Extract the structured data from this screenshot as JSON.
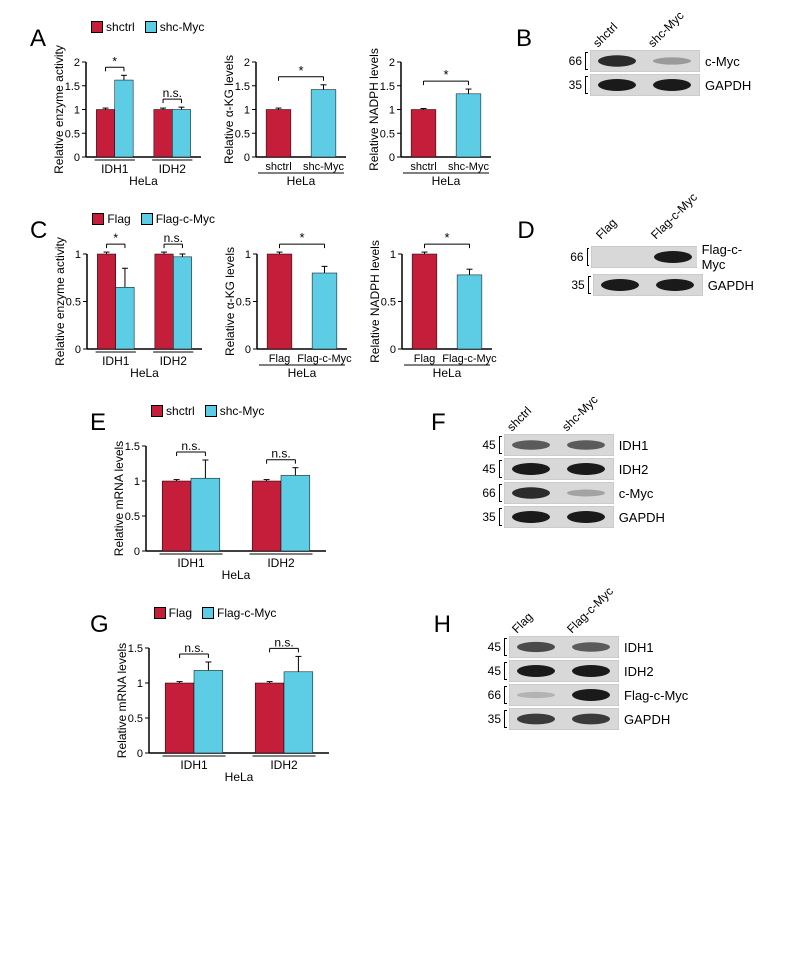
{
  "colors": {
    "shctrl": "#c41e3a",
    "shc_myc": "#5dcde5",
    "axis": "#000000",
    "bg": "#ffffff"
  },
  "panelA": {
    "label": "A",
    "legend": [
      {
        "label": "shctrl",
        "color": "#c41e3a"
      },
      {
        "label": "shc-Myc",
        "color": "#5dcde5"
      }
    ],
    "charts": [
      {
        "ylabel": "Relative enzyme activity",
        "ymax": 2,
        "yticks": [
          0,
          0.5,
          1,
          1.5,
          2
        ],
        "groups": [
          {
            "name": "IDH1",
            "bars": [
              {
                "v": 1.0,
                "err": 0.03,
                "c": "#c41e3a"
              },
              {
                "v": 1.62,
                "err": 0.1,
                "c": "#5dcde5"
              }
            ],
            "sig": "*"
          },
          {
            "name": "IDH2",
            "bars": [
              {
                "v": 1.0,
                "err": 0.03,
                "c": "#c41e3a"
              },
              {
                "v": 1.0,
                "err": 0.05,
                "c": "#5dcde5"
              }
            ],
            "sig": "n.s."
          }
        ],
        "xlabel": "HeLa"
      },
      {
        "ylabel": "Relative α-KG levels",
        "ymax": 2,
        "yticks": [
          0,
          0.5,
          1,
          1.5,
          2
        ],
        "groups": [
          {
            "name": "shctrl",
            "bars": [
              {
                "v": 1.0,
                "err": 0.03,
                "c": "#c41e3a"
              }
            ]
          },
          {
            "name": "shc-Myc",
            "bars": [
              {
                "v": 1.42,
                "err": 0.1,
                "c": "#5dcde5"
              }
            ]
          }
        ],
        "sig_span": "*",
        "xlabel": "HeLa"
      },
      {
        "ylabel": "Relative NADPH levels",
        "ymax": 2,
        "yticks": [
          0,
          0.5,
          1,
          1.5,
          2
        ],
        "groups": [
          {
            "name": "shctrl",
            "bars": [
              {
                "v": 1.0,
                "err": 0.02,
                "c": "#c41e3a"
              }
            ]
          },
          {
            "name": "shc-Myc",
            "bars": [
              {
                "v": 1.33,
                "err": 0.1,
                "c": "#5dcde5"
              }
            ]
          }
        ],
        "sig_span": "*",
        "xlabel": "HeLa"
      }
    ]
  },
  "panelB": {
    "label": "B",
    "headers": [
      "shctrl",
      "shc-Myc"
    ],
    "rows": [
      {
        "mw": "66",
        "label": "c-Myc",
        "bands": [
          0.9,
          0.2
        ]
      },
      {
        "mw": "35",
        "label": "GAPDH",
        "bands": [
          1.0,
          1.0
        ]
      }
    ]
  },
  "panelC": {
    "label": "C",
    "legend": [
      {
        "label": "Flag",
        "color": "#c41e3a"
      },
      {
        "label": "Flag-c-Myc",
        "color": "#5dcde5"
      }
    ],
    "charts": [
      {
        "ylabel": "Relative enzyme activity",
        "ymax": 1,
        "yticks": [
          0,
          0.5,
          1
        ],
        "groups": [
          {
            "name": "IDH1",
            "bars": [
              {
                "v": 1.0,
                "err": 0.02,
                "c": "#c41e3a"
              },
              {
                "v": 0.65,
                "err": 0.2,
                "c": "#5dcde5"
              }
            ],
            "sig": "*"
          },
          {
            "name": "IDH2",
            "bars": [
              {
                "v": 1.0,
                "err": 0.02,
                "c": "#c41e3a"
              },
              {
                "v": 0.97,
                "err": 0.03,
                "c": "#5dcde5"
              }
            ],
            "sig": "n.s."
          }
        ],
        "xlabel": "HeLa"
      },
      {
        "ylabel": "Relative α-KG levels",
        "ymax": 1,
        "yticks": [
          0,
          0.5,
          1
        ],
        "groups": [
          {
            "name": "Flag",
            "bars": [
              {
                "v": 1.0,
                "err": 0.02,
                "c": "#c41e3a"
              }
            ]
          },
          {
            "name": "Flag-c-Myc",
            "bars": [
              {
                "v": 0.8,
                "err": 0.07,
                "c": "#5dcde5"
              }
            ]
          }
        ],
        "sig_span": "*",
        "xlabel": "HeLa"
      },
      {
        "ylabel": "Relative NADPH levels",
        "ymax": 1,
        "yticks": [
          0,
          0.5,
          1
        ],
        "groups": [
          {
            "name": "Flag",
            "bars": [
              {
                "v": 1.0,
                "err": 0.02,
                "c": "#c41e3a"
              }
            ]
          },
          {
            "name": "Flag-c-Myc",
            "bars": [
              {
                "v": 0.78,
                "err": 0.06,
                "c": "#5dcde5"
              }
            ]
          }
        ],
        "sig_span": "*",
        "xlabel": "HeLa"
      }
    ]
  },
  "panelD": {
    "label": "D",
    "headers": [
      "Flag",
      "Flag-c-Myc"
    ],
    "rows": [
      {
        "mw": "66",
        "label": "Flag-c-Myc",
        "bands": [
          0.0,
          1.0
        ]
      },
      {
        "mw": "35",
        "label": "GAPDH",
        "bands": [
          1.0,
          1.0
        ]
      }
    ]
  },
  "panelE": {
    "label": "E",
    "legend": [
      {
        "label": "shctrl",
        "color": "#c41e3a"
      },
      {
        "label": "shc-Myc",
        "color": "#5dcde5"
      }
    ],
    "chart": {
      "ylabel": "Relative mRNA levels",
      "ymax": 1.5,
      "yticks": [
        0,
        0.5,
        1,
        1.5
      ],
      "groups": [
        {
          "name": "IDH1",
          "bars": [
            {
              "v": 1.0,
              "err": 0.02,
              "c": "#c41e3a"
            },
            {
              "v": 1.04,
              "err": 0.26,
              "c": "#5dcde5"
            }
          ],
          "sig": "n.s."
        },
        {
          "name": "IDH2",
          "bars": [
            {
              "v": 1.0,
              "err": 0.02,
              "c": "#c41e3a"
            },
            {
              "v": 1.08,
              "err": 0.11,
              "c": "#5dcde5"
            }
          ],
          "sig": "n.s."
        }
      ],
      "xlabel": "HeLa"
    }
  },
  "panelF": {
    "label": "F",
    "headers": [
      "shctrl",
      "shc-Myc"
    ],
    "rows": [
      {
        "mw": "45",
        "label": "IDH1",
        "bands": [
          0.6,
          0.6
        ]
      },
      {
        "mw": "45",
        "label": "IDH2",
        "bands": [
          1.0,
          1.0
        ]
      },
      {
        "mw": "66",
        "label": "c-Myc",
        "bands": [
          0.9,
          0.15
        ]
      },
      {
        "mw": "35",
        "label": "GAPDH",
        "bands": [
          1.0,
          1.0
        ]
      }
    ]
  },
  "panelG": {
    "label": "G",
    "legend": [
      {
        "label": "Flag",
        "color": "#c41e3a"
      },
      {
        "label": "Flag-c-Myc",
        "color": "#5dcde5"
      }
    ],
    "chart": {
      "ylabel": "Relative mRNA levels",
      "ymax": 1.5,
      "yticks": [
        0,
        0.5,
        1,
        1.5
      ],
      "groups": [
        {
          "name": "IDH1",
          "bars": [
            {
              "v": 1.0,
              "err": 0.02,
              "c": "#c41e3a"
            },
            {
              "v": 1.18,
              "err": 0.12,
              "c": "#5dcde5"
            }
          ],
          "sig": "n.s."
        },
        {
          "name": "IDH2",
          "bars": [
            {
              "v": 1.0,
              "err": 0.02,
              "c": "#c41e3a"
            },
            {
              "v": 1.16,
              "err": 0.22,
              "c": "#5dcde5"
            }
          ],
          "sig": "n.s."
        }
      ],
      "xlabel": "HeLa"
    }
  },
  "panelH": {
    "label": "H",
    "headers": [
      "Flag",
      "Flag-c-Myc"
    ],
    "rows": [
      {
        "mw": "45",
        "label": "IDH1",
        "bands": [
          0.7,
          0.6
        ]
      },
      {
        "mw": "45",
        "label": "IDH2",
        "bands": [
          1.0,
          1.0
        ]
      },
      {
        "mw": "66",
        "label": "Flag-c-Myc",
        "bands": [
          0.05,
          1.0
        ]
      },
      {
        "mw": "35",
        "label": "GAPDH",
        "bands": [
          0.8,
          0.8
        ]
      }
    ]
  }
}
